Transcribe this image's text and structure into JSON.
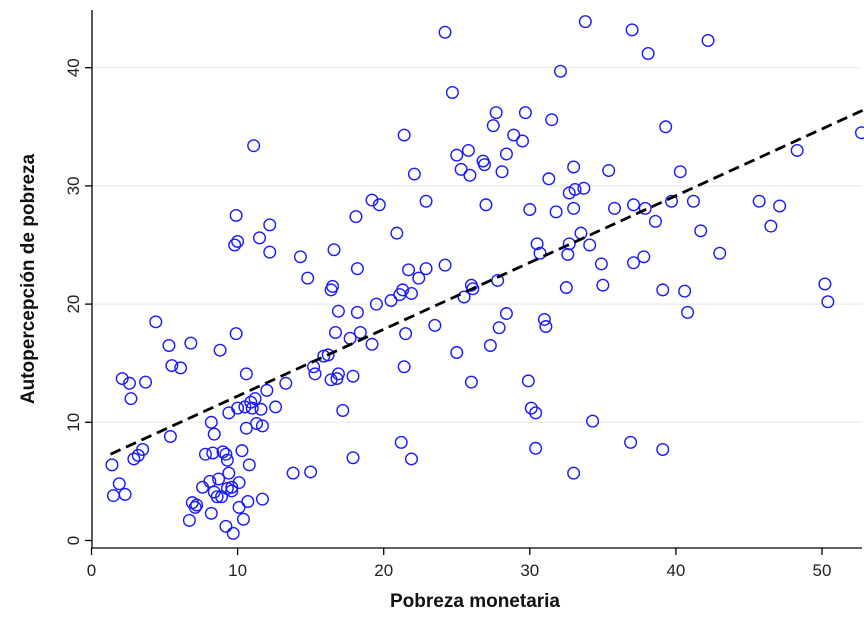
{
  "chart_data": {
    "type": "scatter",
    "title": "",
    "xlabel": "Pobreza monetaria",
    "ylabel": "Autopercepción de pobreza",
    "xlim": [
      -1,
      53
    ],
    "ylim": [
      -1,
      45
    ],
    "xticks": [
      0,
      10,
      20,
      30,
      40,
      50
    ],
    "yticks": [
      0,
      10,
      20,
      30,
      40
    ],
    "grid": "horizontal",
    "legend": "none",
    "colors": {
      "points": "#1a1aff",
      "fit": "#000000",
      "grid": "#e6ecef",
      "axis": "#000000"
    },
    "fit_line": {
      "style": "dashed",
      "x": [
        1.3,
        52.8
      ],
      "y": [
        7.3,
        36.4
      ]
    },
    "points": [
      [
        1.4,
        6.4
      ],
      [
        1.5,
        3.8
      ],
      [
        1.9,
        4.8
      ],
      [
        2.1,
        13.7
      ],
      [
        2.3,
        3.9
      ],
      [
        2.6,
        13.3
      ],
      [
        2.7,
        12.0
      ],
      [
        2.9,
        6.9
      ],
      [
        3.2,
        7.2
      ],
      [
        3.5,
        7.7
      ],
      [
        3.7,
        13.4
      ],
      [
        4.4,
        18.5
      ],
      [
        5.3,
        16.5
      ],
      [
        5.4,
        8.8
      ],
      [
        5.5,
        14.8
      ],
      [
        6.1,
        14.6
      ],
      [
        6.8,
        16.7
      ],
      [
        6.7,
        1.7
      ],
      [
        6.9,
        3.2
      ],
      [
        7.1,
        2.8
      ],
      [
        7.2,
        3.0
      ],
      [
        7.6,
        4.5
      ],
      [
        7.8,
        7.3
      ],
      [
        8.1,
        5.0
      ],
      [
        8.2,
        2.3
      ],
      [
        8.2,
        10.0
      ],
      [
        8.3,
        7.4
      ],
      [
        8.4,
        4.1
      ],
      [
        8.4,
        9.0
      ],
      [
        8.6,
        3.7
      ],
      [
        8.7,
        5.2
      ],
      [
        8.8,
        16.1
      ],
      [
        8.9,
        3.7
      ],
      [
        9.0,
        7.5
      ],
      [
        9.2,
        7.3
      ],
      [
        9.2,
        1.2
      ],
      [
        9.3,
        4.4
      ],
      [
        9.3,
        6.8
      ],
      [
        9.4,
        5.7
      ],
      [
        9.4,
        10.8
      ],
      [
        9.6,
        4.5
      ],
      [
        9.6,
        4.2
      ],
      [
        9.7,
        0.6
      ],
      [
        9.8,
        25.0
      ],
      [
        9.9,
        27.5
      ],
      [
        9.9,
        17.5
      ],
      [
        10.0,
        25.3
      ],
      [
        10.0,
        11.2
      ],
      [
        10.1,
        4.9
      ],
      [
        10.1,
        2.8
      ],
      [
        10.3,
        7.6
      ],
      [
        10.4,
        1.8
      ],
      [
        10.5,
        11.3
      ],
      [
        10.6,
        14.1
      ],
      [
        10.6,
        9.5
      ],
      [
        10.7,
        3.3
      ],
      [
        10.8,
        6.4
      ],
      [
        10.9,
        11.7
      ],
      [
        11.0,
        11.2
      ],
      [
        11.1,
        33.4
      ],
      [
        11.2,
        12.0
      ],
      [
        11.3,
        9.9
      ],
      [
        11.5,
        25.6
      ],
      [
        11.6,
        11.1
      ],
      [
        11.7,
        3.5
      ],
      [
        11.7,
        9.7
      ],
      [
        12.0,
        12.7
      ],
      [
        12.2,
        26.7
      ],
      [
        12.2,
        24.4
      ],
      [
        12.6,
        11.3
      ],
      [
        13.3,
        13.3
      ],
      [
        13.8,
        5.7
      ],
      [
        14.3,
        24.0
      ],
      [
        14.8,
        22.2
      ],
      [
        15.0,
        5.8
      ],
      [
        15.2,
        14.7
      ],
      [
        15.3,
        14.1
      ],
      [
        15.9,
        15.6
      ],
      [
        16.2,
        15.7
      ],
      [
        16.4,
        21.2
      ],
      [
        16.4,
        13.6
      ],
      [
        16.5,
        21.5
      ],
      [
        16.6,
        24.6
      ],
      [
        16.7,
        17.6
      ],
      [
        16.8,
        13.7
      ],
      [
        16.9,
        14.1
      ],
      [
        16.9,
        19.4
      ],
      [
        17.2,
        11.0
      ],
      [
        17.7,
        17.1
      ],
      [
        17.9,
        7.0
      ],
      [
        17.9,
        13.9
      ],
      [
        18.1,
        27.4
      ],
      [
        18.2,
        19.3
      ],
      [
        18.2,
        23.0
      ],
      [
        18.4,
        17.6
      ],
      [
        19.2,
        28.8
      ],
      [
        19.2,
        16.6
      ],
      [
        19.5,
        20.0
      ],
      [
        19.7,
        28.4
      ],
      [
        20.5,
        20.3
      ],
      [
        20.9,
        26.0
      ],
      [
        21.1,
        20.8
      ],
      [
        21.2,
        8.3
      ],
      [
        21.3,
        21.2
      ],
      [
        21.4,
        14.7
      ],
      [
        21.4,
        34.3
      ],
      [
        21.5,
        17.5
      ],
      [
        21.7,
        22.9
      ],
      [
        21.9,
        6.9
      ],
      [
        21.9,
        20.9
      ],
      [
        22.1,
        31.0
      ],
      [
        22.4,
        22.2
      ],
      [
        22.9,
        28.7
      ],
      [
        22.9,
        23.0
      ],
      [
        23.5,
        18.2
      ],
      [
        24.2,
        43.0
      ],
      [
        24.2,
        23.3
      ],
      [
        24.7,
        37.9
      ],
      [
        25.0,
        32.6
      ],
      [
        25.0,
        15.9
      ],
      [
        25.3,
        31.4
      ],
      [
        25.5,
        20.6
      ],
      [
        25.8,
        33.0
      ],
      [
        25.9,
        30.9
      ],
      [
        26.0,
        21.6
      ],
      [
        26.0,
        13.4
      ],
      [
        26.1,
        21.3
      ],
      [
        26.8,
        32.1
      ],
      [
        26.9,
        31.8
      ],
      [
        27.0,
        28.4
      ],
      [
        27.3,
        16.5
      ],
      [
        27.5,
        35.1
      ],
      [
        27.7,
        36.2
      ],
      [
        27.8,
        22.0
      ],
      [
        27.9,
        18.0
      ],
      [
        28.1,
        31.2
      ],
      [
        28.4,
        32.7
      ],
      [
        28.4,
        19.2
      ],
      [
        28.9,
        34.3
      ],
      [
        29.5,
        33.8
      ],
      [
        29.7,
        36.2
      ],
      [
        29.9,
        13.5
      ],
      [
        30.0,
        28.0
      ],
      [
        30.1,
        11.2
      ],
      [
        30.4,
        7.8
      ],
      [
        30.4,
        10.8
      ],
      [
        30.5,
        25.1
      ],
      [
        30.7,
        24.3
      ],
      [
        31.0,
        18.7
      ],
      [
        31.1,
        18.1
      ],
      [
        31.3,
        30.6
      ],
      [
        31.5,
        35.6
      ],
      [
        31.8,
        27.8
      ],
      [
        32.1,
        39.7
      ],
      [
        32.5,
        21.4
      ],
      [
        32.6,
        24.2
      ],
      [
        32.7,
        29.4
      ],
      [
        32.7,
        25.1
      ],
      [
        33.0,
        5.7
      ],
      [
        33.0,
        31.6
      ],
      [
        33.0,
        28.1
      ],
      [
        33.1,
        29.7
      ],
      [
        33.5,
        26.0
      ],
      [
        33.7,
        29.8
      ],
      [
        33.8,
        43.9
      ],
      [
        34.1,
        25.0
      ],
      [
        34.3,
        10.1
      ],
      [
        34.9,
        23.4
      ],
      [
        35.0,
        21.6
      ],
      [
        35.4,
        31.3
      ],
      [
        35.8,
        28.1
      ],
      [
        36.9,
        8.3
      ],
      [
        37.0,
        43.2
      ],
      [
        37.1,
        28.4
      ],
      [
        37.1,
        23.5
      ],
      [
        37.8,
        24.0
      ],
      [
        37.9,
        28.1
      ],
      [
        38.1,
        41.2
      ],
      [
        38.6,
        27.0
      ],
      [
        39.1,
        21.2
      ],
      [
        39.1,
        7.7
      ],
      [
        39.3,
        35.0
      ],
      [
        39.7,
        28.7
      ],
      [
        40.3,
        31.2
      ],
      [
        40.6,
        21.1
      ],
      [
        40.8,
        19.3
      ],
      [
        41.2,
        28.7
      ],
      [
        41.7,
        26.2
      ],
      [
        42.2,
        42.3
      ],
      [
        43.0,
        24.3
      ],
      [
        45.7,
        28.7
      ],
      [
        46.5,
        26.6
      ],
      [
        47.1,
        28.3
      ],
      [
        48.3,
        33.0
      ],
      [
        50.2,
        21.7
      ],
      [
        50.4,
        20.2
      ],
      [
        52.7,
        34.5
      ]
    ]
  }
}
